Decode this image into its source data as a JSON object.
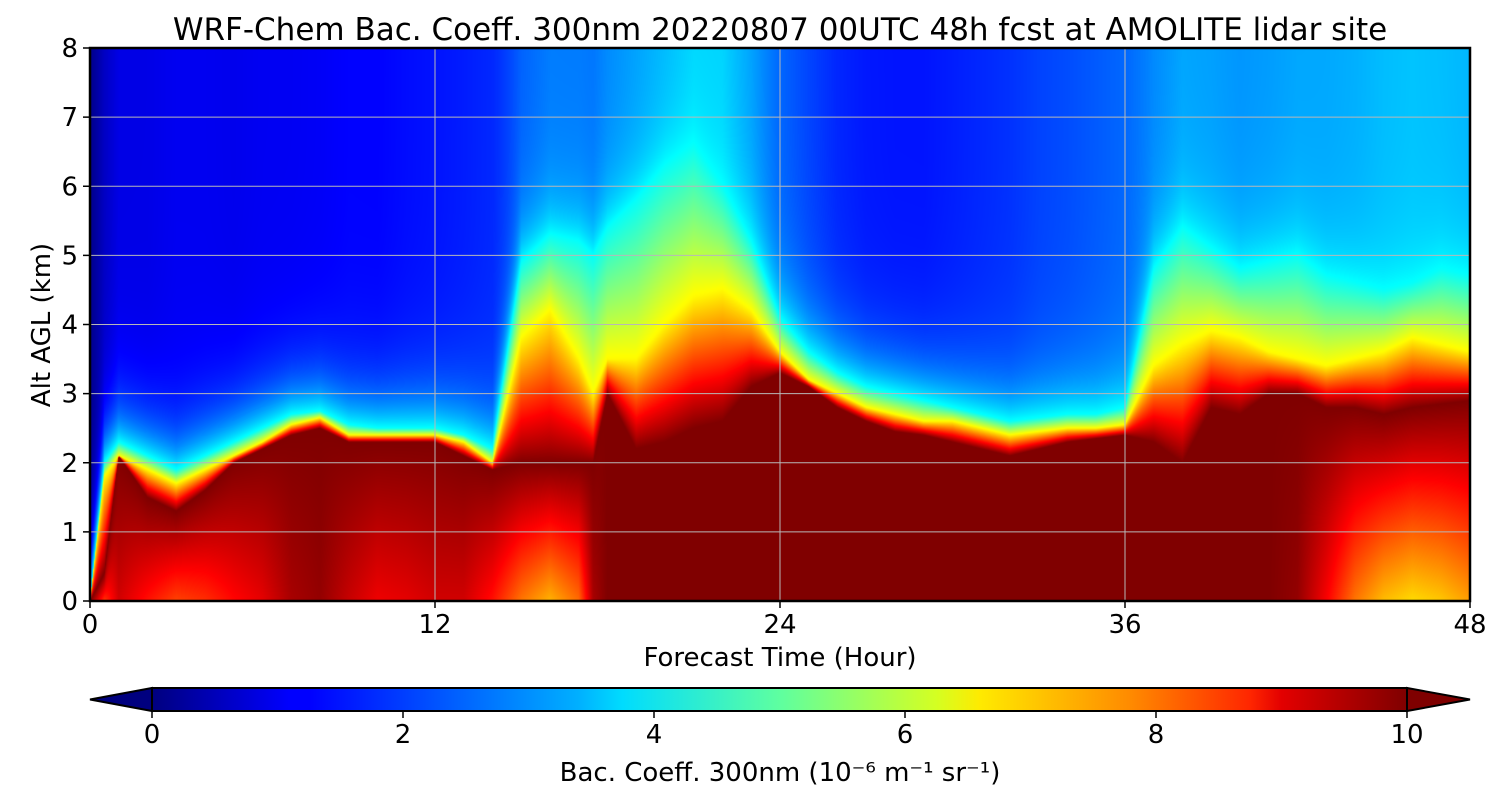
{
  "chart_data": {
    "type": "heatmap",
    "title": "WRF-Chem Bac. Coeff. 300nm  20220807 00UTC 48h fcst at AMOLITE lidar site",
    "xlabel": "Forecast Time (Hour)",
    "ylabel": "Alt AGL (km)",
    "xlim": [
      0,
      48
    ],
    "ylim": [
      0,
      8
    ],
    "xticks": [
      0,
      12,
      24,
      36,
      48
    ],
    "yticks": [
      0,
      1,
      2,
      3,
      4,
      5,
      6,
      7,
      8
    ],
    "grid": true,
    "colormap": "jet",
    "colorbar": {
      "label": "Bac. Coeff. 300nm  (10⁻⁶ m⁻¹ sr⁻¹)",
      "range": [
        0,
        10
      ],
      "ticks": [
        0,
        2,
        4,
        6,
        8,
        10
      ],
      "extend": "both",
      "orientation": "horizontal"
    },
    "x": [
      0,
      0.5,
      1,
      2,
      3,
      4,
      5,
      6,
      7,
      8,
      9,
      10,
      11,
      12,
      13,
      14,
      15,
      16,
      17,
      17.5,
      18,
      19,
      20,
      21,
      22,
      23,
      24,
      25,
      26,
      27,
      28,
      29,
      30,
      31,
      32,
      33,
      34,
      35,
      36,
      37,
      38,
      39,
      40,
      41,
      42,
      43,
      44,
      45,
      46,
      47,
      48
    ],
    "profiles": {
      "h_dense": [
        0,
        0.4,
        2.1,
        1.5,
        1.3,
        1.6,
        2.0,
        2.2,
        2.4,
        2.5,
        2.3,
        2.3,
        2.3,
        2.3,
        2.1,
        1.9,
        2.0,
        2.0,
        2.0,
        2.0,
        3.0,
        2.2,
        2.3,
        2.5,
        2.6,
        3.1,
        3.3,
        3.1,
        2.8,
        2.6,
        2.45,
        2.4,
        2.3,
        2.2,
        2.1,
        2.2,
        2.3,
        2.35,
        2.4,
        2.3,
        2.0,
        2.8,
        2.7,
        3.0,
        3.0,
        2.8,
        2.8,
        2.7,
        2.8,
        2.85,
        2.9
      ],
      "h_yellow": [
        0,
        1.8,
        2.1,
        1.9,
        1.7,
        1.9,
        2.1,
        2.3,
        2.55,
        2.65,
        2.4,
        2.4,
        2.4,
        2.4,
        2.3,
        2.0,
        3.8,
        4.2,
        3.5,
        3.0,
        3.5,
        3.5,
        4.0,
        4.4,
        4.5,
        4.2,
        3.6,
        3.2,
        3.0,
        2.8,
        2.7,
        2.6,
        2.6,
        2.5,
        2.4,
        2.45,
        2.5,
        2.5,
        2.55,
        3.4,
        3.7,
        3.9,
        3.8,
        3.6,
        3.5,
        3.4,
        3.5,
        3.6,
        3.8,
        3.7,
        3.6
      ],
      "h_cyan": [
        0,
        2.0,
        2.3,
        2.1,
        1.9,
        2.1,
        2.3,
        2.5,
        2.7,
        2.75,
        2.55,
        2.5,
        2.5,
        2.5,
        2.4,
        2.2,
        4.9,
        5.3,
        5.2,
        5.0,
        5.4,
        5.8,
        6.3,
        6.6,
        6.0,
        5.2,
        4.1,
        3.6,
        3.3,
        3.1,
        3.0,
        2.9,
        2.8,
        2.7,
        2.6,
        2.65,
        2.7,
        2.7,
        2.8,
        4.8,
        5.4,
        5.1,
        4.8,
        4.9,
        5.0,
        4.7,
        4.6,
        4.5,
        4.6,
        4.8,
        4.7
      ],
      "v_bottom": [
        10,
        8.2,
        9.2,
        8.6,
        8.1,
        8.3,
        8.7,
        9.0,
        9.6,
        9.8,
        9.3,
        8.9,
        9.0,
        9.2,
        9.2,
        8.6,
        7.6,
        7.0,
        7.7,
        9.6,
        10,
        10,
        10,
        10,
        10,
        10,
        10,
        10,
        10,
        10,
        10,
        10,
        10,
        10,
        10,
        10,
        10,
        10,
        10,
        10,
        10,
        10,
        10,
        10,
        9.8,
        8.8,
        7.6,
        6.9,
        6.6,
        6.8,
        7.2
      ],
      "bg_surface": [
        0.1,
        0.9,
        1.5,
        1.6,
        1.8,
        1.7,
        1.5,
        1.4,
        1.4,
        1.5,
        1.6,
        1.6,
        1.7,
        1.7,
        1.8,
        2.0,
        2.6,
        2.8,
        2.7,
        2.6,
        2.8,
        3.0,
        3.2,
        3.5,
        3.6,
        3.2,
        2.6,
        2.2,
        1.8,
        1.6,
        1.5,
        1.5,
        1.6,
        1.7,
        1.8,
        1.9,
        2.0,
        2.2,
        2.4,
        2.8,
        3.1,
        3.0,
        2.8,
        2.9,
        3.0,
        2.9,
        2.8,
        2.8,
        3.0,
        3.2,
        3.2
      ],
      "bg_top": [
        0.1,
        0.6,
        0.8,
        0.8,
        0.9,
        0.9,
        0.9,
        1.0,
        1.0,
        1.0,
        1.1,
        1.1,
        1.2,
        1.3,
        1.4,
        1.5,
        1.6,
        1.8,
        2.0,
        2.1,
        2.2,
        2.4,
        2.6,
        2.6,
        2.5,
        2.2,
        1.9,
        1.7,
        1.5,
        1.4,
        1.4,
        1.4,
        1.5,
        1.6,
        1.7,
        1.9,
        2.0,
        2.1,
        2.2,
        2.3,
        2.4,
        2.5,
        2.6,
        2.6,
        2.7,
        2.9,
        3.2,
        3.5,
        3.4,
        3.0,
        2.8
      ]
    }
  }
}
